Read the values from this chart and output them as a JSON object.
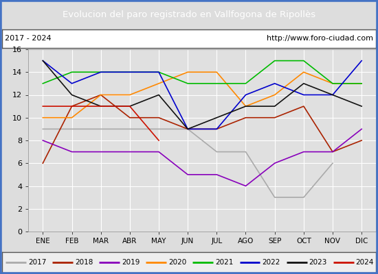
{
  "title": "Evolucion del paro registrado en Vallfogona de Ripollès",
  "title_color": "#5b8dd9",
  "subtitle_left": "2017 - 2024",
  "subtitle_right": "http://www.foro-ciudad.com",
  "months": [
    "ENE",
    "FEB",
    "MAR",
    "ABR",
    "MAY",
    "JUN",
    "JUL",
    "AGO",
    "SEP",
    "OCT",
    "NOV",
    "DIC"
  ],
  "ylim": [
    0,
    16
  ],
  "yticks": [
    0,
    2,
    4,
    6,
    8,
    10,
    12,
    14,
    16
  ],
  "series": {
    "2017": {
      "color": "#aaaaaa",
      "values": [
        9,
        9,
        9,
        9,
        9,
        9,
        7,
        7,
        3,
        3,
        6,
        null
      ]
    },
    "2018": {
      "color": "#aa2200",
      "values": [
        6,
        11,
        12,
        10,
        10,
        9,
        9,
        10,
        10,
        11,
        7,
        8
      ]
    },
    "2019": {
      "color": "#8800bb",
      "values": [
        8,
        7,
        7,
        7,
        7,
        5,
        5,
        4,
        6,
        7,
        7,
        9
      ]
    },
    "2020": {
      "color": "#ff8800",
      "values": [
        10,
        10,
        12,
        12,
        13,
        14,
        14,
        11,
        12,
        14,
        13,
        13
      ]
    },
    "2021": {
      "color": "#00bb00",
      "values": [
        13,
        14,
        14,
        14,
        14,
        13,
        13,
        13,
        15,
        15,
        13,
        13
      ]
    },
    "2022": {
      "color": "#0000cc",
      "values": [
        15,
        13,
        14,
        14,
        14,
        9,
        9,
        12,
        13,
        12,
        12,
        15
      ]
    },
    "2023": {
      "color": "#111111",
      "values": [
        15,
        12,
        11,
        11,
        12,
        9,
        10,
        11,
        11,
        13,
        12,
        11
      ]
    },
    "2024": {
      "color": "#cc1100",
      "values": [
        11,
        11,
        11,
        11,
        8,
        null,
        null,
        null,
        null,
        null,
        null,
        null
      ]
    }
  },
  "bg_color": "#dddddd",
  "plot_bg": "#e0e0e0",
  "grid_color": "#ffffff",
  "legend_bg": "#eeeeee",
  "border_color": "#4472c4",
  "title_bg_color": "#5b8dd9"
}
